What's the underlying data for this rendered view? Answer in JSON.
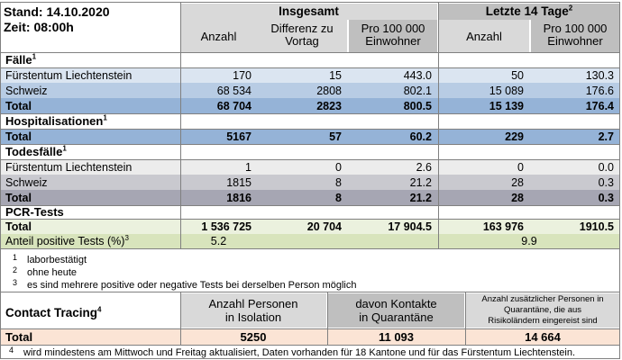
{
  "header": {
    "stand": "Stand: 14.10.2020",
    "zeit": "Zeit: 08:00h",
    "insgesamt": "Insgesamt",
    "letzte": "Letzte 14 Tage",
    "letzte_sup": "2",
    "col_anzahl": "Anzahl",
    "col_diff_1": "Differenz zu",
    "col_diff_2": "Vortag",
    "col_pro_1": "Pro 100 000",
    "col_pro_2": "Einwohner",
    "col_anzahl14": "Anzahl",
    "col_pro14_1": "Pro 100 000",
    "col_pro14_2": "Einwohner"
  },
  "faelle": {
    "title": "Fälle",
    "sup": "1",
    "rows": [
      {
        "label": "Fürstentum Liechtenstein",
        "anzahl": "170",
        "diff": "15",
        "pro": "443.0",
        "anzahl14": "50",
        "pro14": "130.3"
      },
      {
        "label": "Schweiz",
        "anzahl": "68 534",
        "diff": "2808",
        "pro": "802.1",
        "anzahl14": "15 089",
        "pro14": "176.6"
      },
      {
        "label": "Total",
        "anzahl": "68 704",
        "diff": "2823",
        "pro": "800.5",
        "anzahl14": "15 139",
        "pro14": "176.4"
      }
    ]
  },
  "hosp": {
    "title": "Hospitalisationen",
    "sup": "1",
    "total": {
      "label": "Total",
      "anzahl": "5167",
      "diff": "57",
      "pro": "60.2",
      "anzahl14": "229",
      "pro14": "2.7"
    }
  },
  "tod": {
    "title": "Todesfälle",
    "sup": "1",
    "rows": [
      {
        "label": "Fürstentum Liechtenstein",
        "anzahl": "1",
        "diff": "0",
        "pro": "2.6",
        "anzahl14": "0",
        "pro14": "0.0"
      },
      {
        "label": "Schweiz",
        "anzahl": "1815",
        "diff": "8",
        "pro": "21.2",
        "anzahl14": "28",
        "pro14": "0.3"
      },
      {
        "label": "Total",
        "anzahl": "1816",
        "diff": "8",
        "pro": "21.2",
        "anzahl14": "28",
        "pro14": "0.3"
      }
    ]
  },
  "pcr": {
    "title": "PCR-Tests",
    "total": {
      "label": "Total",
      "anzahl": "1 536 725",
      "diff": "20 704",
      "pro": "17 904.5",
      "anzahl14": "163 976",
      "pro14": "1910.5"
    },
    "anteil_label": "Anteil positive Tests (%)",
    "anteil_sup": "3",
    "anteil": "5.2",
    "anteil14": "9.9"
  },
  "footnotes": [
    {
      "n": "1",
      "text": "laborbestätigt"
    },
    {
      "n": "2",
      "text": "ohne heute"
    },
    {
      "n": "3",
      "text": "es sind mehrere positive oder negative Tests bei derselben Person möglich"
    }
  ],
  "contact": {
    "title": "Contact Tracing",
    "sup": "4",
    "col1_1": "Anzahl Personen",
    "col1_2": "in Isolation",
    "col2_1": "davon Kontakte",
    "col2_2": "in Quarantäne",
    "col3_1": "Anzahl zusätzlicher Personen in",
    "col3_2": "Quarantäne, die aus",
    "col3_3": "Risikoländern eingereist sind",
    "total_label": "Total",
    "isolation": "5250",
    "kontakte": "11 093",
    "risiko": "14 664"
  },
  "footnote4": {
    "n": "4",
    "text": "wird mindestens am Mittwoch und Freitag aktualisiert, Daten vorhanden für 18 Kantone und für das Fürstentum Liechtenstein."
  }
}
